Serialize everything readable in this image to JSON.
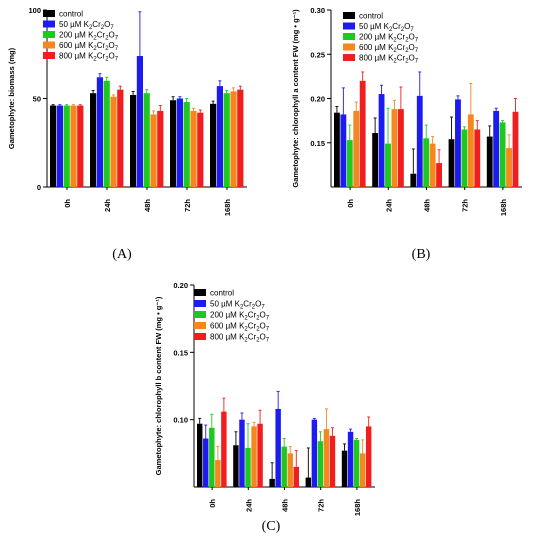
{
  "chart_data": [
    {
      "panel": "(A)",
      "type": "bar",
      "ylabel": "Gametophyte: biomass (mg)",
      "ylim": [
        0,
        100
      ],
      "yticks": [
        "0",
        "50",
        "100"
      ],
      "categories": [
        "0h",
        "24h",
        "48h",
        "72h",
        "168h"
      ],
      "series": [
        {
          "name": "control",
          "color": "#000000",
          "values": [
            46,
            53,
            52,
            49,
            47
          ],
          "errors": [
            0.5,
            1.5,
            2,
            2,
            1.5
          ]
        },
        {
          "name": "50 µM K₂Cr₂O₇",
          "color": "#1c1cf0",
          "values": [
            46,
            62,
            74,
            50,
            57
          ],
          "errors": [
            0.5,
            2,
            25,
            1,
            3
          ]
        },
        {
          "name": "200 µM K₂Cr₂O₇",
          "color": "#1ec81e",
          "values": [
            46,
            60,
            53,
            48,
            53
          ],
          "errors": [
            0.5,
            2,
            2,
            2,
            1.5
          ]
        },
        {
          "name": "600 µM K₂Cr₂O₇",
          "color": "#f5871e",
          "values": [
            46,
            51,
            41,
            43,
            54
          ],
          "errors": [
            0.5,
            1,
            2,
            1.5,
            2
          ]
        },
        {
          "name": "800 µM K₂Cr₂O₇",
          "color": "#f01e1e",
          "values": [
            46,
            55,
            43,
            42,
            55
          ],
          "errors": [
            0.5,
            2,
            3,
            1.5,
            2
          ]
        }
      ]
    },
    {
      "panel": "(B)",
      "type": "bar",
      "ylabel": "Gametophyte: chlorophyll a content FW (mg • g⁻¹)",
      "ylim": [
        0.1,
        0.3
      ],
      "yticks": [
        "0.15",
        "0.20",
        "0.25",
        "0.30"
      ],
      "categories": [
        "0h",
        "24h",
        "48h",
        "72h",
        "168h"
      ],
      "series": [
        {
          "name": "control",
          "color": "#000000",
          "values": [
            0.184,
            0.161,
            0.115,
            0.154,
            0.157
          ],
          "errors": [
            0.007,
            0.017,
            0.028,
            0.025,
            0.012
          ]
        },
        {
          "name": "50 µM K₂Cr₂O₇",
          "color": "#1c1cf0",
          "values": [
            0.182,
            0.205,
            0.203,
            0.199,
            0.186
          ],
          "errors": [
            0.03,
            0.01,
            0.027,
            0.004,
            0.003
          ]
        },
        {
          "name": "200 µM K₂Cr₂O₇",
          "color": "#1ec81e",
          "values": [
            0.153,
            0.149,
            0.155,
            0.165,
            0.173
          ],
          "errors": [
            0.017,
            0.04,
            0.015,
            0.003,
            0.002
          ]
        },
        {
          "name": "600 µM K₂Cr₂O₇",
          "color": "#f5871e",
          "values": [
            0.186,
            0.188,
            0.149,
            0.182,
            0.144
          ],
          "errors": [
            0.01,
            0.01,
            0.008,
            0.035,
            0.015
          ]
        },
        {
          "name": "800 µM K₂Cr₂O₇",
          "color": "#f01e1e",
          "values": [
            0.22,
            0.188,
            0.127,
            0.165,
            0.185
          ],
          "errors": [
            0.01,
            0.025,
            0.015,
            0.01,
            0.015
          ]
        }
      ]
    },
    {
      "panel": "(C)",
      "type": "bar",
      "ylabel": "Gametophyte: chlorophyll b content FW (mg • g⁻¹)",
      "ylim": [
        0.05,
        0.2
      ],
      "yticks": [
        "0.10",
        "0.15",
        "0.20"
      ],
      "categories": [
        "0h",
        "24h",
        "48h",
        "72h",
        "168h"
      ],
      "series": [
        {
          "name": "control",
          "color": "#000000",
          "values": [
            0.097,
            0.081,
            0.056,
            0.057,
            0.077
          ],
          "errors": [
            0.004,
            0.01,
            0.012,
            0.022,
            0.005
          ]
        },
        {
          "name": "50 µM K₂Cr₂O₇",
          "color": "#1c1cf0",
          "values": [
            0.086,
            0.1,
            0.108,
            0.1,
            0.091
          ],
          "errors": [
            0.01,
            0.005,
            0.013,
            0.001,
            0.002
          ]
        },
        {
          "name": "200 µM K₂Cr₂O₇",
          "color": "#1ec81e",
          "values": [
            0.094,
            0.079,
            0.08,
            0.084,
            0.085
          ],
          "errors": [
            0.01,
            0.018,
            0.006,
            0.007,
            0.001
          ]
        },
        {
          "name": "600 µM K₂Cr₂O₇",
          "color": "#f5871e",
          "values": [
            0.07,
            0.095,
            0.075,
            0.093,
            0.075
          ],
          "errors": [
            0.01,
            0.003,
            0.005,
            0.015,
            0.01
          ]
        },
        {
          "name": "800 µM K₂Cr₂O₇",
          "color": "#f01e1e",
          "values": [
            0.106,
            0.097,
            0.065,
            0.088,
            0.095
          ],
          "errors": [
            0.01,
            0.01,
            0.012,
            0.006,
            0.007
          ]
        }
      ]
    }
  ]
}
